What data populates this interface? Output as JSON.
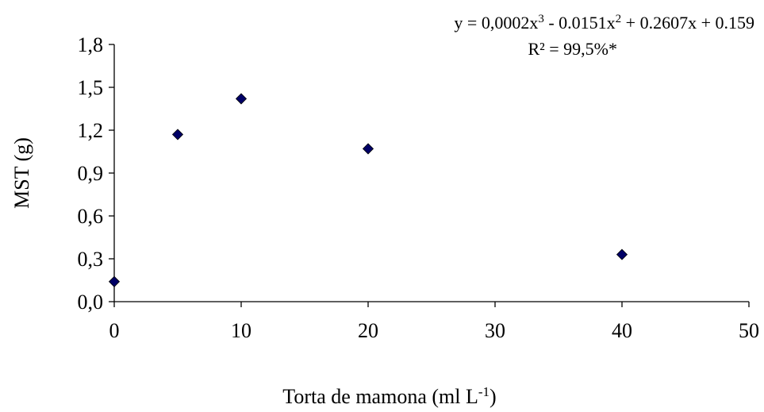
{
  "chart_data": {
    "type": "scatter",
    "xlabel": "Torta de mamona (ml L",
    "xlabel_sup": "-1",
    "xlabel_end": ")",
    "ylabel": "MST (g)",
    "xlim": [
      0,
      50
    ],
    "ylim": [
      0,
      1.8
    ],
    "x_ticks": [
      0,
      10,
      20,
      30,
      40,
      50
    ],
    "y_ticks": [
      0.0,
      0.3,
      0.6,
      0.9,
      1.2,
      1.5,
      1.8
    ],
    "x_tick_labels": [
      "0",
      "10",
      "20",
      "30",
      "40",
      "50"
    ],
    "y_tick_labels": [
      "0,0",
      "0,3",
      "0,6",
      "0,9",
      "1,2",
      "1,5",
      "1,8"
    ],
    "grid": false,
    "marker": "diamond",
    "marker_color": "#000066",
    "points": [
      {
        "x": 0,
        "y": 0.14
      },
      {
        "x": 5,
        "y": 1.17
      },
      {
        "x": 10,
        "y": 1.42
      },
      {
        "x": 20,
        "y": 1.07
      },
      {
        "x": 40,
        "y": 0.33
      }
    ],
    "equation": {
      "line1": [
        {
          "t": "y = 0,0002x"
        },
        {
          "t": "3",
          "sup": true
        },
        {
          "t": " - 0.0151x"
        },
        {
          "t": "2",
          "sup": true
        },
        {
          "t": " + 0.2607x + 0.159"
        }
      ],
      "line2": "R² = 99,5%*"
    }
  }
}
